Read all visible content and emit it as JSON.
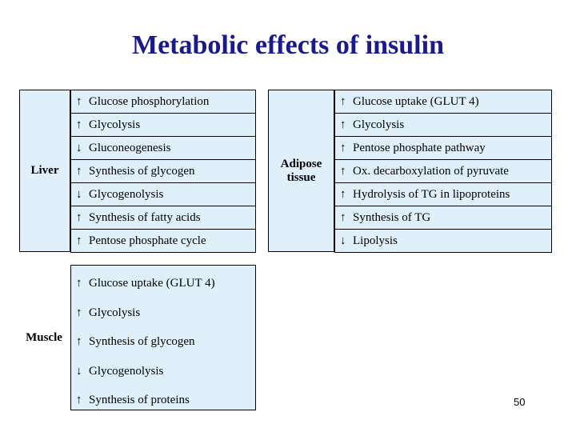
{
  "title": "Metabolic effects of insulin",
  "liver": {
    "label": "Liver",
    "items": [
      {
        "arrow": "↑",
        "text": "Glucose phosphorylation"
      },
      {
        "arrow": "↑",
        "text": "Glycolysis"
      },
      {
        "arrow": "↓",
        "text": "Gluconeogenesis"
      },
      {
        "arrow": "↑",
        "text": "Synthesis of glycogen"
      },
      {
        "arrow": "↓",
        "text": "Glycogenolysis"
      },
      {
        "arrow": "↑",
        "text": "Synthesis of fatty acids"
      },
      {
        "arrow": "↑",
        "text": "Pentose phosphate cycle"
      }
    ]
  },
  "adipose": {
    "label_line1": "Adipose",
    "label_line2": "tissue",
    "items": [
      {
        "arrow": "↑",
        "text": "Glucose uptake (GLUT 4)"
      },
      {
        "arrow": "↑",
        "text": "Glycolysis"
      },
      {
        "arrow": "↑",
        "text": "Pentose phosphate pathway"
      },
      {
        "arrow": "↑",
        "text": "Ox. decarboxylation of pyruvate"
      },
      {
        "arrow": "↑",
        "text": "Hydrolysis of TG in lipoproteins"
      },
      {
        "arrow": "↑",
        "text": "Synthesis of TG"
      },
      {
        "arrow": "↓",
        "text": "Lipolysis"
      }
    ]
  },
  "muscle": {
    "label": "Muscle",
    "items": [
      {
        "arrow": "↑",
        "text": "Glucose uptake (GLUT 4)"
      },
      {
        "arrow": "↑",
        "text": "Glycolysis"
      },
      {
        "arrow": "↑",
        "text": "Synthesis of glycogen"
      },
      {
        "arrow": "↓",
        "text": "Glycogenolysis"
      },
      {
        "arrow": "↑",
        "text": "Synthesis of proteins"
      }
    ]
  },
  "page_number": "50"
}
